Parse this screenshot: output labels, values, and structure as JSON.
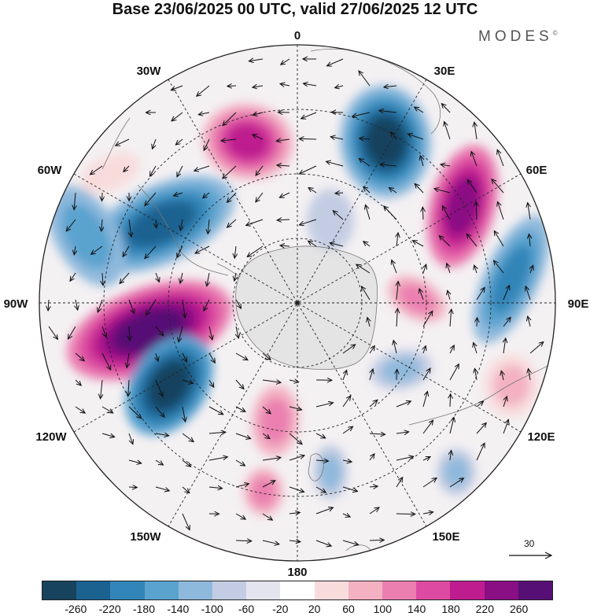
{
  "title": "Base 23/06/2025 00 UTC, valid 27/06/2025 12 UTC",
  "brand": "MODES",
  "brand_mark": "©",
  "longitude_labels": {
    "lon_0": "0",
    "lon_30E": "30E",
    "lon_60E": "60E",
    "lon_90E": "90E",
    "lon_120E": "120E",
    "lon_150E": "150E",
    "lon_180": "180",
    "lon_150W": "150W",
    "lon_120W": "120W",
    "lon_90W": "90W",
    "lon_60W": "60W",
    "lon_30W": "30W"
  },
  "reference_vector": {
    "label": "30"
  },
  "colorbar": {
    "colors": [
      "#17435e",
      "#1b6291",
      "#3285b8",
      "#5aa3cf",
      "#8fb9dc",
      "#c3cce2",
      "#e4e4ee",
      "#ffffff",
      "#f8dcdc",
      "#f3b1c2",
      "#ea7fb0",
      "#dc4aa1",
      "#be1c8f",
      "#8a0f84",
      "#560f74"
    ],
    "tick_labels": [
      "-260",
      "-220",
      "-180",
      "-140",
      "-100",
      "-60",
      "-20",
      "20",
      "60",
      "100",
      "140",
      "180",
      "220",
      "260"
    ]
  }
}
